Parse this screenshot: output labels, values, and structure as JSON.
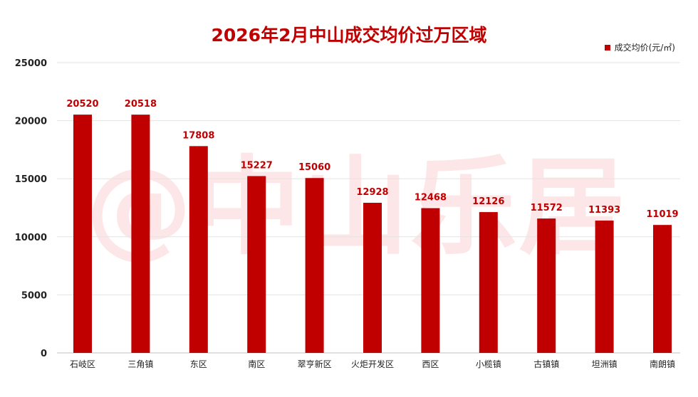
{
  "watermark": "@中山乐居",
  "chart_data": {
    "type": "bar",
    "title": "2026年2月中山成交均价过万区域",
    "xlabel": "",
    "ylabel": "",
    "categories": [
      "石岐区",
      "三角镇",
      "东区",
      "南区",
      "翠亨新区",
      "火炬开发区",
      "西区",
      "小榄镇",
      "古镇镇",
      "坦洲镇",
      "南朗镇"
    ],
    "series": [
      {
        "name": "成交均价(元/㎡)",
        "values": [
          20520,
          20518,
          17808,
          15227,
          15060,
          12928,
          12468,
          12126,
          11572,
          11393,
          11019
        ]
      }
    ],
    "ylim": [
      0,
      25000
    ],
    "yticks": [
      0,
      5000,
      10000,
      15000,
      20000,
      25000
    ],
    "grid": true,
    "legend_position": "top-right",
    "bar_color": "#c00000",
    "label_color": "#c00000"
  }
}
